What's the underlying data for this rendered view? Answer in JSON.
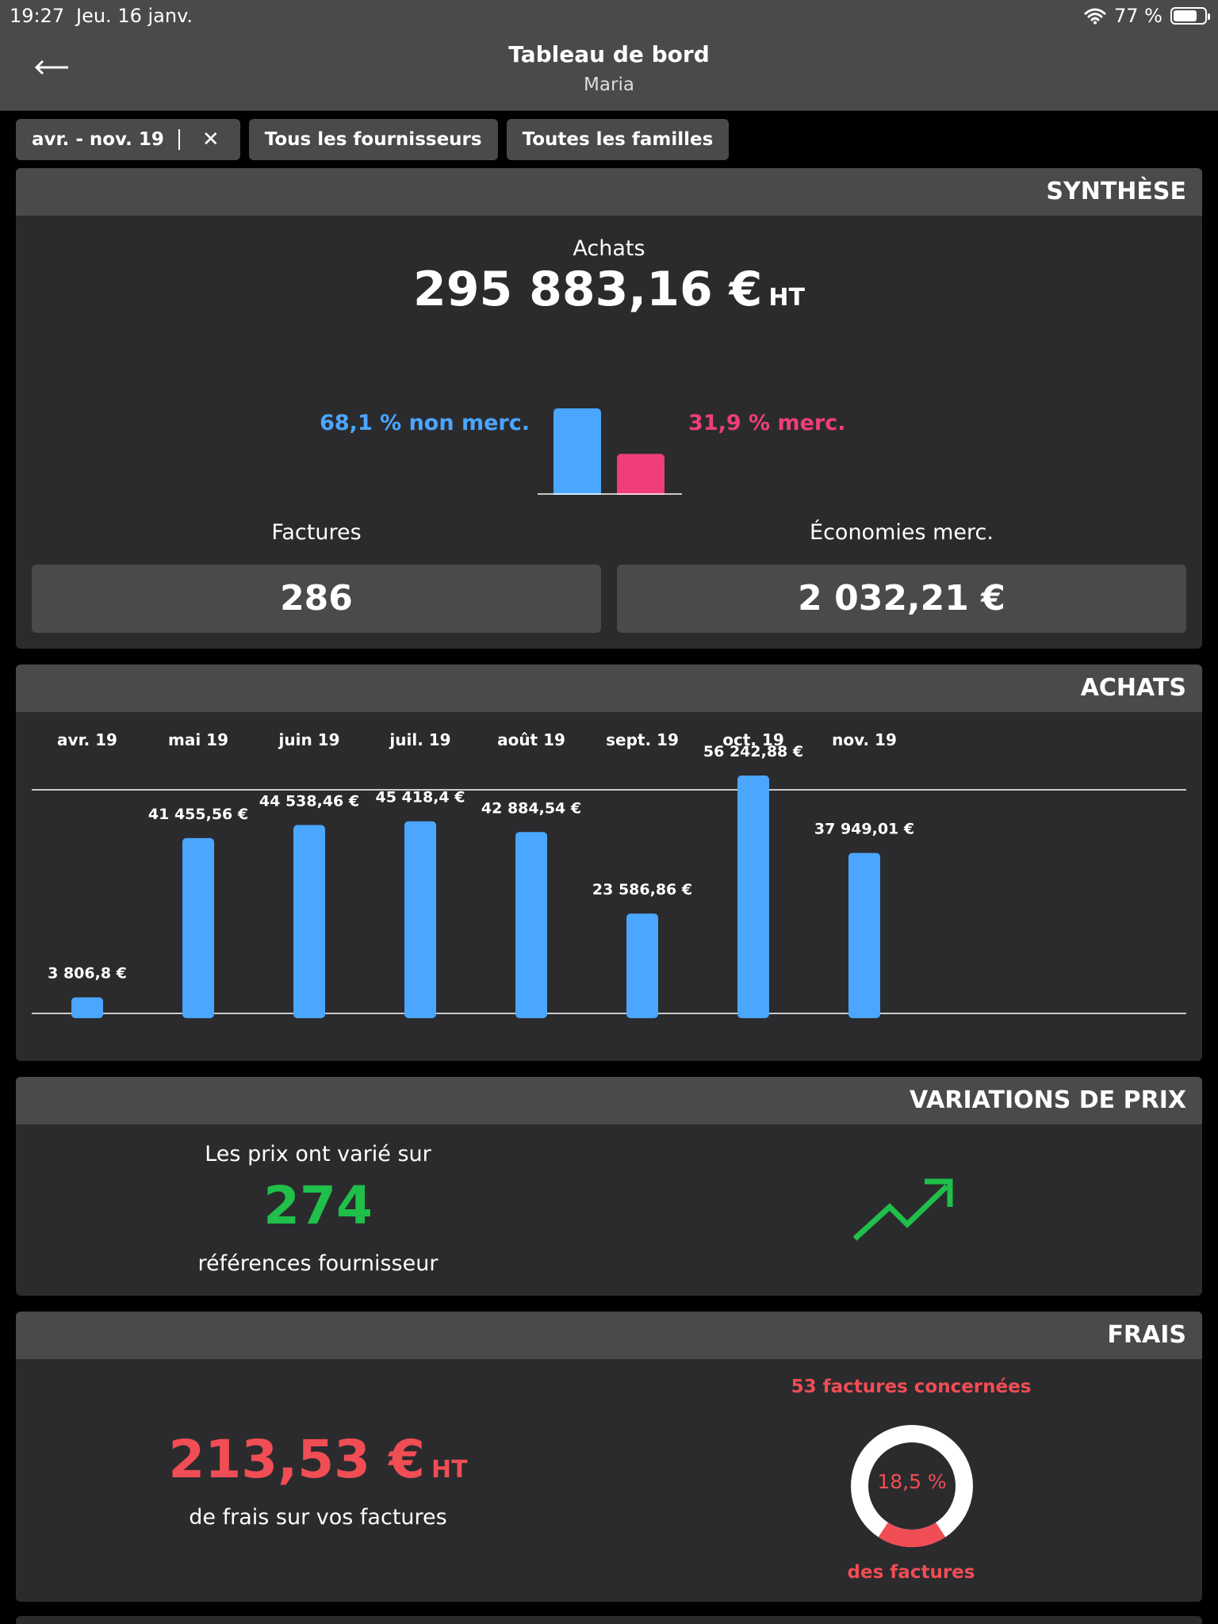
{
  "status_bar": {
    "time": "19:27",
    "date": "Jeu. 16 janv.",
    "battery": "77 %",
    "battery_level": 0.77
  },
  "nav": {
    "title": "Tableau de bord",
    "subtitle": "Maria"
  },
  "filters": {
    "period": "avr. - nov. 19",
    "clear": "✕",
    "suppliers": "Tous les fournisseurs",
    "families": "Toutes les familles"
  },
  "synthese": {
    "header": "SYNTHÈSE",
    "achats_label": "Achats",
    "achats_amount": "295 883,16 €",
    "achats_unit": "HT",
    "non_merc": "68,1 % non merc.",
    "merc": "31,9 % merc.",
    "split_values": [
      68.1,
      31.9
    ],
    "split_colors": [
      "#4aa6ff",
      "#ef3e78"
    ],
    "factures_label": "Factures",
    "factures_value": "286",
    "economies_label": "Économies merc.",
    "economies_value": "2 032,21 €"
  },
  "achats": {
    "header": "ACHATS",
    "bar_color": "#4aa6ff"
  },
  "chart_data": {
    "type": "bar",
    "categories": [
      "avr. 19",
      "mai 19",
      "juin 19",
      "juil. 19",
      "août 19",
      "sept. 19",
      "oct. 19",
      "nov. 19"
    ],
    "values": [
      3806.8,
      41455.56,
      44538.46,
      45418.4,
      42884.54,
      23586.86,
      56242.88,
      37949.01
    ],
    "value_labels": [
      "3 806,8 €",
      "41 455,56 €",
      "44 538,46 €",
      "45 418,4 €",
      "42 884,54 €",
      "23 586,86 €",
      "56 242,88 €",
      "37 949,01 €"
    ],
    "title": "",
    "xlabel": "",
    "ylabel": "",
    "grid": false
  },
  "variations": {
    "header": "VARIATIONS DE PRIX",
    "line1": "Les prix ont varié sur",
    "count": "274",
    "line2": "références fournisseur",
    "trend_icon": "trending-up-icon"
  },
  "frais": {
    "header": "FRAIS",
    "amount": "213,53 €",
    "unit": "HT",
    "subtitle": "de frais sur vos factures",
    "factures_concernees": "53 factures concernées",
    "percent_label": "18,5 %",
    "percent_value": 18.5,
    "des_factures": "des factures"
  }
}
